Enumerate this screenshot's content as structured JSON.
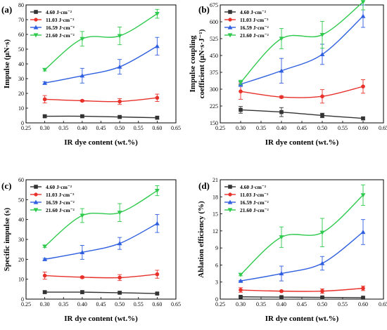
{
  "chart_data": [
    {
      "type": "line",
      "panel_label": "(a)",
      "xlabel": "IR dye content (wt.%)",
      "ylabel": "Impulse (μN·s)",
      "ylabel_lines": [
        "Impulse (μN·s)"
      ],
      "xlim": [
        0.25,
        0.65
      ],
      "ylim": [
        0,
        80
      ],
      "xticks": [
        "0.25",
        "0.30",
        "0.35",
        "0.40",
        "0.45",
        "0.50",
        "0.55",
        "0.60",
        "0.65"
      ],
      "yticks": [
        "0",
        "10",
        "20",
        "30",
        "40",
        "50",
        "60",
        "70",
        "80"
      ],
      "x": [
        0.3,
        0.4,
        0.5,
        0.6
      ],
      "series": [
        {
          "name": "4.60  J·cm⁻²",
          "color": "#333333",
          "marker": "square",
          "values": [
            4.5,
            4.5,
            4.0,
            3.5
          ],
          "errors": [
            0.8,
            0.8,
            0.8,
            0.8
          ]
        },
        {
          "name": "11.03 J·cm⁻²",
          "color": "#e8312a",
          "marker": "circle",
          "values": [
            16,
            15,
            14.5,
            17
          ],
          "errors": [
            2.5,
            0.5,
            2.0,
            2.5
          ]
        },
        {
          "name": "16.59 J·cm⁻²",
          "color": "#2f5fe0",
          "marker": "triangle-up",
          "values": [
            27,
            32,
            38,
            52
          ],
          "errors": [
            0.8,
            5,
            5,
            6
          ]
        },
        {
          "name": "21.60 J·cm⁻²",
          "color": "#2ec94d",
          "marker": "triangle-down",
          "values": [
            36,
            57,
            59,
            74
          ],
          "errors": [
            0.8,
            5,
            6,
            3
          ]
        }
      ],
      "legend": "top-left"
    },
    {
      "type": "line",
      "panel_label": "(b)",
      "xlabel": "IR dye content (wt.%)",
      "ylabel": "Impulse coupling coefficient (μN·s·J⁻¹)",
      "ylabel_lines": [
        "Impulse  coupling",
        "coefficient (μN·s·J⁻¹)"
      ],
      "xlim": [
        0.25,
        0.65
      ],
      "ylim": [
        150,
        675
      ],
      "xticks": [
        "0.25",
        "0.30",
        "0.35",
        "0.40",
        "0.45",
        "0.50",
        "0.55",
        "0.60",
        "0.65"
      ],
      "yticks": [
        "150",
        "225",
        "300",
        "375",
        "450",
        "525",
        "600",
        "675"
      ],
      "x": [
        0.3,
        0.4,
        0.5,
        0.6
      ],
      "series": [
        {
          "name": "4.60  J·cm⁻²",
          "color": "#333333",
          "marker": "square",
          "values": [
            208,
            198,
            183,
            170
          ],
          "errors": [
            15,
            20,
            10,
            5
          ]
        },
        {
          "name": "11.03 J·cm⁻²",
          "color": "#e8312a",
          "marker": "circle",
          "values": [
            290,
            265,
            268,
            312
          ],
          "errors": [
            35,
            5,
            30,
            30
          ]
        },
        {
          "name": "16.59 J·cm⁻²",
          "color": "#2f5fe0",
          "marker": "triangle-up",
          "values": [
            322,
            382,
            455,
            625
          ],
          "errors": [
            10,
            55,
            45,
            50
          ]
        },
        {
          "name": "21.60 J·cm⁻²",
          "color": "#2ec94d",
          "marker": "triangle-down",
          "values": [
            330,
            525,
            542,
            688
          ],
          "errors": [
            10,
            45,
            60,
            35
          ]
        }
      ],
      "legend": "top-left"
    },
    {
      "type": "line",
      "panel_label": "(c)",
      "xlabel": "IR dye content (wt.%)",
      "ylabel": "Specific impulse (s)",
      "ylabel_lines": [
        "Specific impulse (s)"
      ],
      "xlim": [
        0.25,
        0.65
      ],
      "ylim": [
        0,
        60
      ],
      "xticks": [
        "0.25",
        "0.30",
        "0.35",
        "0.40",
        "0.45",
        "0.50",
        "0.55",
        "0.60",
        "0.65"
      ],
      "yticks": [
        "0",
        "10",
        "20",
        "30",
        "40",
        "50",
        "60"
      ],
      "x": [
        0.3,
        0.4,
        0.5,
        0.6
      ],
      "series": [
        {
          "name": "4.60  J·cm⁻²",
          "color": "#333333",
          "marker": "square",
          "values": [
            3.5,
            3.5,
            3.2,
            2.8
          ],
          "errors": [
            0.5,
            0.8,
            0.5,
            0.5
          ]
        },
        {
          "name": "11.03 J·cm⁻²",
          "color": "#e8312a",
          "marker": "circle",
          "values": [
            11.8,
            11.0,
            10.8,
            12.5
          ],
          "errors": [
            1.8,
            0.5,
            1.5,
            2
          ]
        },
        {
          "name": "16.59 J·cm⁻²",
          "color": "#2f5fe0",
          "marker": "triangle-up",
          "values": [
            20,
            23.5,
            28,
            38
          ],
          "errors": [
            0.5,
            3.5,
            3,
            4.5
          ]
        },
        {
          "name": "21.60 J·cm⁻²",
          "color": "#2ec94d",
          "marker": "triangle-down",
          "values": [
            26.5,
            42,
            43.5,
            54.5
          ],
          "errors": [
            0.5,
            3.5,
            4.5,
            2.5
          ]
        }
      ],
      "legend": "top-left"
    },
    {
      "type": "line",
      "panel_label": "(d)",
      "xlabel": "IR dye content (wt.%)",
      "ylabel": "Ablation efficiency (%)",
      "ylabel_lines": [
        "Ablation efficiency (%)"
      ],
      "xlim": [
        0.25,
        0.65
      ],
      "ylim": [
        0,
        21
      ],
      "xticks": [
        "0.25",
        "0.30",
        "0.35",
        "0.40",
        "0.45",
        "0.50",
        "0.55",
        "0.60",
        "0.65"
      ],
      "yticks": [
        "0",
        "3",
        "6",
        "9",
        "12",
        "15",
        "18",
        "21"
      ],
      "x": [
        0.3,
        0.4,
        0.5,
        0.6
      ],
      "series": [
        {
          "name": "4.60  J·cm⁻²",
          "color": "#333333",
          "marker": "square",
          "values": [
            0.4,
            0.35,
            0.3,
            0.25
          ],
          "errors": [
            0.1,
            0.1,
            0.1,
            0.1
          ]
        },
        {
          "name": "11.03 J·cm⁻²",
          "color": "#e8312a",
          "marker": "circle",
          "values": [
            1.6,
            1.4,
            1.4,
            1.9
          ],
          "errors": [
            0.4,
            0.1,
            0.4,
            0.4
          ]
        },
        {
          "name": "16.59 J·cm⁻²",
          "color": "#2f5fe0",
          "marker": "triangle-up",
          "values": [
            3.2,
            4.5,
            6.3,
            11.8
          ],
          "errors": [
            0.1,
            1.3,
            1.2,
            2.2
          ]
        },
        {
          "name": "21.60 J·cm⁻²",
          "color": "#2ec94d",
          "marker": "triangle-down",
          "values": [
            4.3,
            10.9,
            11.7,
            18.3
          ],
          "errors": [
            0.2,
            1.8,
            2.5,
            1.8
          ]
        }
      ],
      "legend": "top-left"
    }
  ]
}
